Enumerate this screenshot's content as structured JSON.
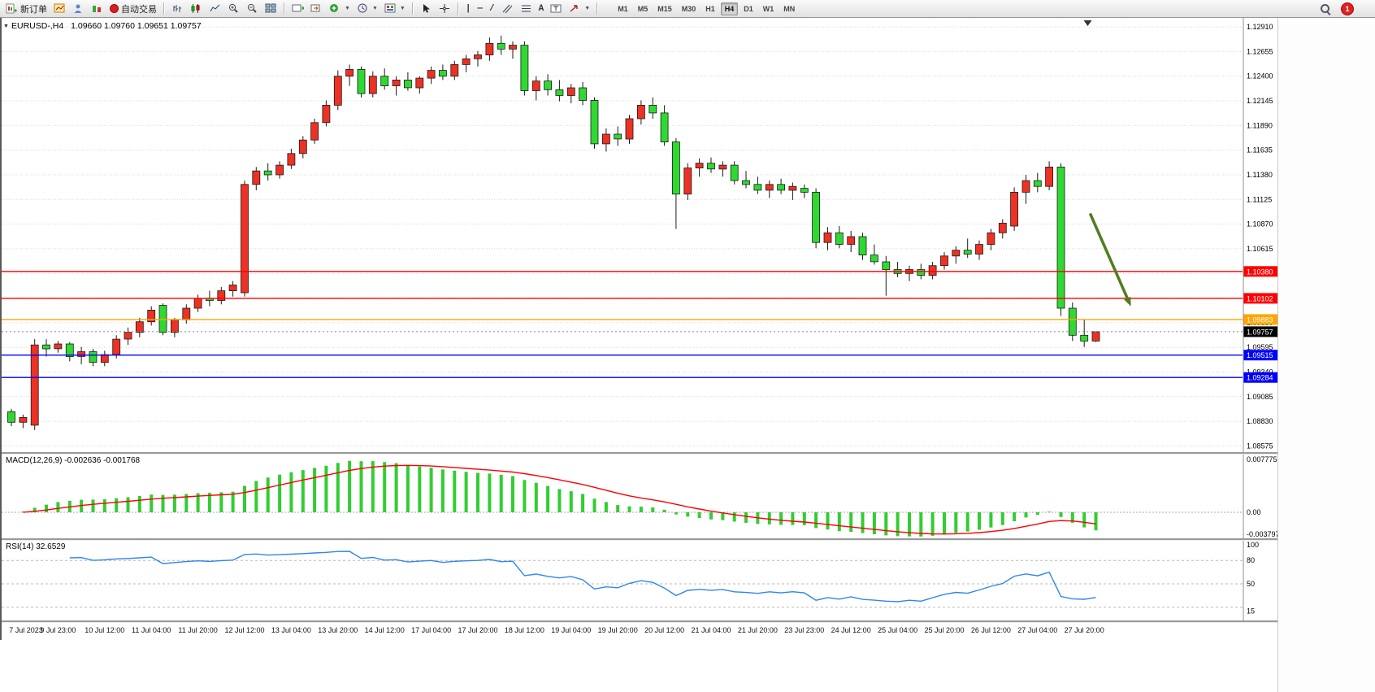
{
  "toolbar": {
    "new_order_label": "新订单",
    "autotrade_label": "自动交易",
    "timeframes": [
      "M1",
      "M5",
      "M15",
      "M30",
      "H1",
      "H4",
      "D1",
      "W1",
      "MN"
    ],
    "active_timeframe": "H4",
    "notification_badge": "1"
  },
  "chart": {
    "symbol_title": "EURUSD-,H4",
    "ohlc": "1.09660 1.09760 1.09651 1.09757"
  },
  "chart_data": {
    "type": "candlestick",
    "symbol": "EURUSD-",
    "timeframe": "H4",
    "colors": {
      "bull": "#ED3124",
      "bull_border": "#8f0000",
      "bear": "#2FD932",
      "bear_border": "#006400",
      "wick": "#1a1a1a",
      "macd_hist": "#32CD32",
      "macd_signal": "#FF0000",
      "rsi_line": "#2E86F0",
      "arrow": "#527C1E",
      "grid": "#d8d8d8"
    },
    "price_axis_ticks": [
      "1.12910",
      "1.12655",
      "1.12400",
      "1.12145",
      "1.11890",
      "1.11635",
      "1.11380",
      "1.11125",
      "1.10870",
      "1.10615",
      "1.10360",
      "1.10105",
      "1.09850",
      "1.09595",
      "1.09340",
      "1.09085",
      "1.08830",
      "1.08575"
    ],
    "candles": [
      [
        1.0893,
        1.0896,
        1.0878,
        1.0882
      ],
      [
        1.0882,
        1.089,
        1.0876,
        1.0887
      ],
      [
        1.0879,
        1.0968,
        1.0874,
        1.0962
      ],
      [
        1.0962,
        1.0968,
        1.095,
        1.0958
      ],
      [
        1.0958,
        1.0966,
        1.0954,
        1.0963
      ],
      [
        1.0963,
        1.0965,
        1.0945,
        1.095
      ],
      [
        1.095,
        1.096,
        1.0942,
        1.0955
      ],
      [
        1.0955,
        1.0958,
        1.094,
        1.0944
      ],
      [
        1.0944,
        1.0956,
        1.094,
        1.0952
      ],
      [
        1.0952,
        1.0972,
        1.0948,
        1.0968
      ],
      [
        1.0968,
        1.098,
        1.0962,
        1.0975
      ],
      [
        1.0975,
        1.099,
        1.097,
        1.0986
      ],
      [
        1.0986,
        1.1002,
        1.0982,
        1.0998
      ],
      [
        1.1003,
        1.1005,
        1.0972,
        1.0975
      ],
      [
        1.0975,
        1.099,
        1.097,
        1.0988
      ],
      [
        1.0988,
        1.1004,
        1.0984,
        1.1
      ],
      [
        1.1,
        1.1014,
        1.0996,
        1.101
      ],
      [
        1.101,
        1.1018,
        1.1002,
        1.1008
      ],
      [
        1.1008,
        1.1022,
        1.1004,
        1.1018
      ],
      [
        1.1018,
        1.1028,
        1.1012,
        1.1024
      ],
      [
        1.1016,
        1.1132,
        1.1012,
        1.1128
      ],
      [
        1.1128,
        1.1146,
        1.1122,
        1.1142
      ],
      [
        1.1142,
        1.115,
        1.1132,
        1.1138
      ],
      [
        1.1138,
        1.1152,
        1.1134,
        1.1148
      ],
      [
        1.1148,
        1.1165,
        1.1144,
        1.116
      ],
      [
        1.116,
        1.1178,
        1.1155,
        1.1174
      ],
      [
        1.1174,
        1.1196,
        1.117,
        1.1192
      ],
      [
        1.1192,
        1.1215,
        1.1188,
        1.121
      ],
      [
        1.121,
        1.1246,
        1.1205,
        1.124
      ],
      [
        1.124,
        1.1252,
        1.123,
        1.1247
      ],
      [
        1.1247,
        1.125,
        1.1218,
        1.1222
      ],
      [
        1.1222,
        1.1245,
        1.1218,
        1.124
      ],
      [
        1.124,
        1.1248,
        1.1226,
        1.123
      ],
      [
        1.123,
        1.124,
        1.122,
        1.1236
      ],
      [
        1.1236,
        1.1244,
        1.1225,
        1.1228
      ],
      [
        1.1228,
        1.124,
        1.1222,
        1.1238
      ],
      [
        1.1238,
        1.125,
        1.1232,
        1.1246
      ],
      [
        1.1246,
        1.1252,
        1.1236,
        1.124
      ],
      [
        1.124,
        1.1256,
        1.1236,
        1.1252
      ],
      [
        1.1252,
        1.1262,
        1.1244,
        1.1258
      ],
      [
        1.1258,
        1.1266,
        1.125,
        1.1262
      ],
      [
        1.1262,
        1.128,
        1.1256,
        1.1274
      ],
      [
        1.1274,
        1.1282,
        1.1262,
        1.1268
      ],
      [
        1.1268,
        1.1276,
        1.1258,
        1.1272
      ],
      [
        1.1272,
        1.1276,
        1.122,
        1.1225
      ],
      [
        1.1225,
        1.124,
        1.1215,
        1.1235
      ],
      [
        1.1235,
        1.1242,
        1.122,
        1.1226
      ],
      [
        1.1226,
        1.1236,
        1.1214,
        1.122
      ],
      [
        1.122,
        1.1232,
        1.1212,
        1.1228
      ],
      [
        1.1228,
        1.1234,
        1.121,
        1.1215
      ],
      [
        1.1215,
        1.1218,
        1.1165,
        1.117
      ],
      [
        1.117,
        1.1186,
        1.1162,
        1.118
      ],
      [
        1.118,
        1.1188,
        1.1168,
        1.1175
      ],
      [
        1.1175,
        1.12,
        1.117,
        1.1196
      ],
      [
        1.1196,
        1.1215,
        1.119,
        1.121
      ],
      [
        1.121,
        1.1218,
        1.1196,
        1.1202
      ],
      [
        1.1202,
        1.121,
        1.1168,
        1.1172
      ],
      [
        1.1172,
        1.1176,
        1.1082,
        1.1118
      ],
      [
        1.1118,
        1.115,
        1.1112,
        1.1145
      ],
      [
        1.1145,
        1.1155,
        1.1136,
        1.115
      ],
      [
        1.115,
        1.1156,
        1.114,
        1.1144
      ],
      [
        1.1144,
        1.1152,
        1.1136,
        1.1148
      ],
      [
        1.1148,
        1.1152,
        1.1128,
        1.1132
      ],
      [
        1.1132,
        1.1142,
        1.1124,
        1.1128
      ],
      [
        1.1128,
        1.1136,
        1.1118,
        1.1122
      ],
      [
        1.1122,
        1.1132,
        1.1114,
        1.1128
      ],
      [
        1.1128,
        1.1134,
        1.1118,
        1.1122
      ],
      [
        1.1122,
        1.113,
        1.1112,
        1.1126
      ],
      [
        1.1124,
        1.1128,
        1.1114,
        1.112
      ],
      [
        1.112,
        1.1124,
        1.1062,
        1.1068
      ],
      [
        1.1068,
        1.1084,
        1.106,
        1.1078
      ],
      [
        1.1078,
        1.1085,
        1.1062,
        1.1066
      ],
      [
        1.1066,
        1.108,
        1.1058,
        1.1074
      ],
      [
        1.1074,
        1.1078,
        1.105,
        1.1055
      ],
      [
        1.1055,
        1.1066,
        1.1045,
        1.1048
      ],
      [
        1.1048,
        1.1054,
        1.1013,
        1.104
      ],
      [
        1.104,
        1.1048,
        1.1032,
        1.1036
      ],
      [
        1.1036,
        1.1044,
        1.1028,
        1.104
      ],
      [
        1.104,
        1.1046,
        1.103,
        1.1034
      ],
      [
        1.1034,
        1.1048,
        1.103,
        1.1044
      ],
      [
        1.1044,
        1.1058,
        1.104,
        1.1054
      ],
      [
        1.1054,
        1.1064,
        1.1046,
        1.106
      ],
      [
        1.106,
        1.1072,
        1.1052,
        1.1056
      ],
      [
        1.1056,
        1.107,
        1.105,
        1.1066
      ],
      [
        1.1066,
        1.1082,
        1.106,
        1.1078
      ],
      [
        1.1078,
        1.1092,
        1.1072,
        1.1088
      ],
      [
        1.1085,
        1.1125,
        1.108,
        1.112
      ],
      [
        1.112,
        1.1138,
        1.1108,
        1.1132
      ],
      [
        1.1132,
        1.114,
        1.112,
        1.1126
      ],
      [
        1.1126,
        1.1152,
        1.1122,
        1.1146
      ],
      [
        1.1146,
        1.115,
        1.0992,
        1.1
      ],
      [
        1.1,
        1.1006,
        1.0966,
        1.0972
      ],
      [
        1.0972,
        1.0988,
        1.096,
        1.0966
      ],
      [
        1.0966,
        1.0976,
        1.09651,
        1.09757
      ]
    ],
    "time_labels": [
      {
        "i": 0,
        "t": "7 Jul 2023"
      },
      {
        "i": 4,
        "t": "9 Jul 23:00"
      },
      {
        "i": 8,
        "t": "10 Jul 12:00"
      },
      {
        "i": 12,
        "t": "11 Jul 04:00"
      },
      {
        "i": 16,
        "t": "11 Jul 20:00"
      },
      {
        "i": 20,
        "t": "12 Jul 12:00"
      },
      {
        "i": 24,
        "t": "13 Jul 04:00"
      },
      {
        "i": 28,
        "t": "13 Jul 20:00"
      },
      {
        "i": 32,
        "t": "14 Jul 12:00"
      },
      {
        "i": 36,
        "t": "17 Jul 04:00"
      },
      {
        "i": 40,
        "t": "17 Jul 20:00"
      },
      {
        "i": 44,
        "t": "18 Jul 12:00"
      },
      {
        "i": 48,
        "t": "19 Jul 04:00"
      },
      {
        "i": 52,
        "t": "19 Jul 20:00"
      },
      {
        "i": 56,
        "t": "20 Jul 12:00"
      },
      {
        "i": 60,
        "t": "21 Jul 04:00"
      },
      {
        "i": 64,
        "t": "21 Jul 20:00"
      },
      {
        "i": 68,
        "t": "23 Jul 23:00"
      },
      {
        "i": 72,
        "t": "24 Jul 12:00"
      },
      {
        "i": 76,
        "t": "25 Jul 04:00"
      },
      {
        "i": 80,
        "t": "25 Jul 20:00"
      },
      {
        "i": 84,
        "t": "26 Jul 12:00"
      },
      {
        "i": 88,
        "t": "27 Jul 04:00"
      },
      {
        "i": 92,
        "t": "27 Jul 20:00"
      }
    ],
    "hlines": [
      {
        "price": 1.1038,
        "label": "1.10380",
        "color": "#FF0000"
      },
      {
        "price": 1.10102,
        "label": "1.10102",
        "color": "#FF0000"
      },
      {
        "price": 1.09883,
        "label": "1.09883",
        "color": "#FFA500"
      },
      {
        "price": 1.09515,
        "label": "1.09515",
        "color": "#0000FF"
      },
      {
        "price": 1.09284,
        "label": "1.09284",
        "color": "#0000FF"
      }
    ],
    "current_price": {
      "value": 1.09757,
      "label": "1.09757"
    },
    "annotation_arrow": {
      "from_index": 92.5,
      "from_price": 1.1098,
      "to_index": 96.0,
      "to_price": 1.1002
    },
    "shift_marker_index": 92.3,
    "macd": {
      "label": "MACD(12,26,9) -0.002636 -0.001768",
      "axis_labels": [
        "0.007775",
        "0.00",
        "-0.003797"
      ]
    },
    "rsi": {
      "label": "RSI(14) 32.6529",
      "axis_labels": [
        "100",
        "80",
        "50",
        "15"
      ],
      "levels": [
        80,
        50,
        20
      ]
    }
  }
}
